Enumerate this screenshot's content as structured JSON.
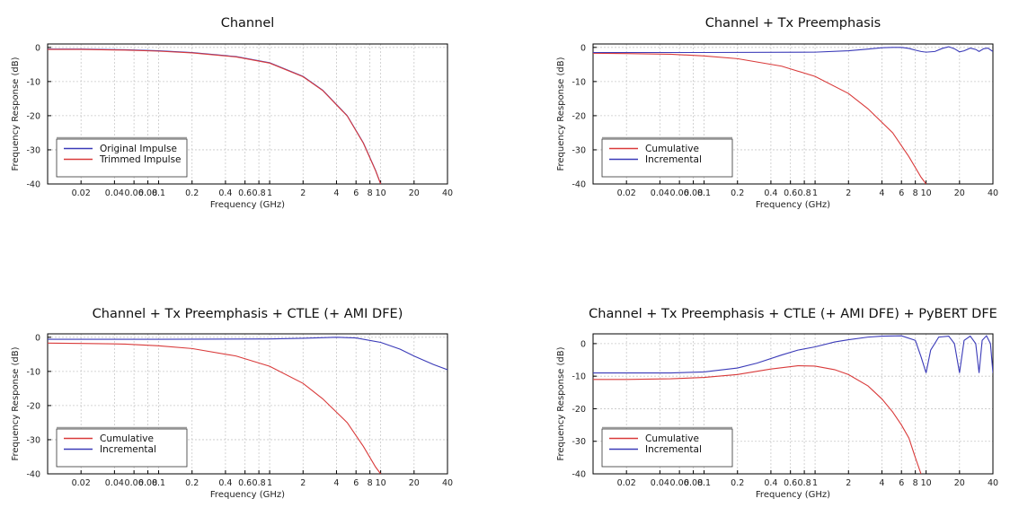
{
  "chart_data": [
    {
      "type": "line",
      "title": "Channel",
      "xlabel": "Frequency (GHz)",
      "ylabel": "Frequency Response (dB)",
      "xscale": "log",
      "xlim": [
        0.01,
        40
      ],
      "ylim": [
        -40,
        1
      ],
      "xticks": [
        0.02,
        0.04,
        0.06,
        0.08,
        0.1,
        0.2,
        0.4,
        0.6,
        0.8,
        1,
        2,
        4,
        6,
        8,
        10,
        20,
        40
      ],
      "xtick_labels": [
        "0.02",
        "0.04",
        "0.06",
        "0.08",
        "0.1",
        "0.2",
        "0.4",
        "0.6",
        "0.8",
        "1",
        "2",
        "4",
        "6",
        "8",
        "10",
        "20",
        "40"
      ],
      "yticks": [
        0,
        -10,
        -20,
        -30,
        -40
      ],
      "ytick_labels": [
        "0",
        "-10",
        "-20",
        "-30",
        "-40"
      ],
      "grid": true,
      "legend_position": "lower-left",
      "series": [
        {
          "name": "Original Impulse",
          "color": "#3a3ab8",
          "x": [
            0.01,
            0.02,
            0.05,
            0.1,
            0.2,
            0.5,
            1,
            2,
            3,
            5,
            7,
            9,
            10
          ],
          "y": [
            -0.5,
            -0.5,
            -0.7,
            -1.0,
            -1.5,
            -2.7,
            -4.5,
            -8.5,
            -12.5,
            -20,
            -28,
            -36,
            -40
          ]
        },
        {
          "name": "Trimmed Impulse",
          "color": "#d93a3a",
          "x": [
            0.01,
            0.02,
            0.05,
            0.1,
            0.2,
            0.5,
            1,
            2,
            3,
            5,
            7,
            9,
            10
          ],
          "y": [
            -0.6,
            -0.6,
            -0.8,
            -1.1,
            -1.6,
            -2.8,
            -4.6,
            -8.6,
            -12.6,
            -20.1,
            -28.1,
            -36.1,
            -40
          ]
        }
      ]
    },
    {
      "type": "line",
      "title": "Channel + Tx Preemphasis",
      "xlabel": "Frequency (GHz)",
      "ylabel": "Frequency Response (dB)",
      "xscale": "log",
      "xlim": [
        0.01,
        40
      ],
      "ylim": [
        -40,
        1
      ],
      "xticks": [
        0.02,
        0.04,
        0.06,
        0.08,
        0.1,
        0.2,
        0.4,
        0.6,
        0.8,
        1,
        2,
        4,
        6,
        8,
        10,
        20,
        40
      ],
      "xtick_labels": [
        "0.02",
        "0.04",
        "0.06",
        "0.08",
        "0.1",
        "0.2",
        "0.4",
        "0.6",
        "0.8",
        "1",
        "2",
        "4",
        "6",
        "8",
        "10",
        "20",
        "40"
      ],
      "yticks": [
        0,
        -10,
        -20,
        -30,
        -40
      ],
      "ytick_labels": [
        "0",
        "-10",
        "-20",
        "-30",
        "-40"
      ],
      "grid": true,
      "legend_position": "lower-left",
      "series": [
        {
          "name": "Cumulative",
          "color": "#d93a3a",
          "x": [
            0.01,
            0.02,
            0.05,
            0.1,
            0.2,
            0.5,
            1,
            2,
            3,
            5,
            7,
            9,
            10
          ],
          "y": [
            -1.7,
            -1.8,
            -2.0,
            -2.5,
            -3.3,
            -5.5,
            -8.5,
            -13.5,
            -18,
            -25,
            -32,
            -38,
            -40
          ]
        },
        {
          "name": "Incremental",
          "color": "#3a3ab8",
          "x": [
            0.01,
            0.1,
            1,
            2,
            3,
            4,
            5,
            6,
            7,
            8,
            9,
            10,
            12,
            14,
            16,
            18,
            20,
            22,
            25,
            28,
            30,
            33,
            36,
            40
          ],
          "y": [
            -1.5,
            -1.5,
            -1.4,
            -1.0,
            -0.5,
            -0.1,
            0.0,
            0.0,
            -0.3,
            -0.8,
            -1.2,
            -1.4,
            -1.2,
            -0.3,
            0.2,
            -0.4,
            -1.3,
            -1.0,
            -0.2,
            -0.6,
            -1.2,
            -0.4,
            -0.2,
            -1.2
          ]
        }
      ]
    },
    {
      "type": "line",
      "title": "Channel + Tx Preemphasis + CTLE (+ AMI DFE)",
      "xlabel": "Frequency (GHz)",
      "ylabel": "Frequency Response (dB)",
      "xscale": "log",
      "xlim": [
        0.01,
        40
      ],
      "ylim": [
        -40,
        1
      ],
      "xticks": [
        0.02,
        0.04,
        0.06,
        0.08,
        0.1,
        0.2,
        0.4,
        0.6,
        0.8,
        1,
        2,
        4,
        6,
        8,
        10,
        20,
        40
      ],
      "xtick_labels": [
        "0.02",
        "0.04",
        "0.06",
        "0.08",
        "0.1",
        "0.2",
        "0.4",
        "0.6",
        "0.8",
        "1",
        "2",
        "4",
        "6",
        "8",
        "10",
        "20",
        "40"
      ],
      "yticks": [
        0,
        -10,
        -20,
        -30,
        -40
      ],
      "ytick_labels": [
        "0",
        "-10",
        "-20",
        "-30",
        "-40"
      ],
      "grid": true,
      "legend_position": "lower-left",
      "series": [
        {
          "name": "Cumulative",
          "color": "#d93a3a",
          "x": [
            0.01,
            0.02,
            0.05,
            0.1,
            0.2,
            0.5,
            1,
            2,
            3,
            5,
            7,
            9,
            10
          ],
          "y": [
            -1.7,
            -1.8,
            -2.0,
            -2.5,
            -3.3,
            -5.5,
            -8.5,
            -13.5,
            -18,
            -25,
            -32,
            -38,
            -40
          ]
        },
        {
          "name": "Incremental",
          "color": "#3a3ab8",
          "x": [
            0.01,
            0.1,
            1,
            2,
            4,
            6,
            10,
            15,
            20,
            30,
            40
          ],
          "y": [
            -0.6,
            -0.6,
            -0.5,
            -0.3,
            0.0,
            -0.2,
            -1.5,
            -3.5,
            -5.5,
            -8.0,
            -9.5
          ]
        }
      ]
    },
    {
      "type": "line",
      "title": "Channel + Tx Preemphasis + CTLE (+ AMI DFE) + PyBERT DFE",
      "xlabel": "Frequency (GHz)",
      "ylabel": "Frequency Response (dB)",
      "xscale": "log",
      "xlim": [
        0.01,
        40
      ],
      "ylim": [
        -40,
        3
      ],
      "xticks": [
        0.02,
        0.04,
        0.06,
        0.08,
        0.1,
        0.2,
        0.4,
        0.6,
        0.8,
        1,
        2,
        4,
        6,
        8,
        10,
        20,
        40
      ],
      "xtick_labels": [
        "0.02",
        "0.04",
        "0.06",
        "0.08",
        "0.1",
        "0.2",
        "0.4",
        "0.6",
        "0.8",
        "1",
        "2",
        "4",
        "6",
        "8",
        "10",
        "20",
        "40"
      ],
      "yticks": [
        0,
        -10,
        -20,
        -30,
        -40
      ],
      "ytick_labels": [
        "0",
        "-10",
        "-20",
        "-30",
        "-40"
      ],
      "grid": true,
      "legend_position": "lower-left",
      "series": [
        {
          "name": "Cumulative",
          "color": "#d93a3a",
          "x": [
            0.01,
            0.02,
            0.05,
            0.1,
            0.2,
            0.4,
            0.7,
            1,
            1.5,
            2,
            3,
            4,
            5,
            6,
            7,
            8,
            9
          ],
          "y": [
            -11,
            -11,
            -10.8,
            -10.4,
            -9.5,
            -7.8,
            -6.8,
            -6.9,
            -8.0,
            -9.5,
            -13,
            -17,
            -21,
            -25,
            -29,
            -35,
            -40
          ]
        },
        {
          "name": "Incremental",
          "color": "#3a3ab8",
          "x": [
            0.01,
            0.05,
            0.1,
            0.2,
            0.3,
            0.5,
            0.7,
            1,
            1.5,
            2,
            3,
            4,
            6,
            8,
            9,
            10,
            11,
            13,
            16,
            18,
            20,
            22,
            25,
            28,
            30,
            32,
            35,
            38,
            40
          ],
          "y": [
            -9,
            -9,
            -8.7,
            -7.5,
            -6,
            -3.5,
            -2,
            -1,
            0.5,
            1.2,
            2,
            2.3,
            2.4,
            1,
            -4,
            -9,
            -2,
            2,
            2.3,
            0,
            -9,
            1,
            2.3,
            0,
            -9,
            1,
            2.4,
            0,
            -9
          ]
        }
      ]
    }
  ]
}
